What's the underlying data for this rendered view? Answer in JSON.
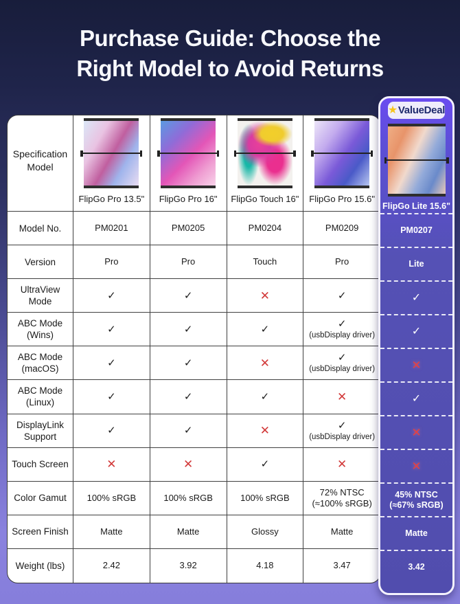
{
  "title": {
    "line1": "Purchase Guide: Choose the",
    "line2": "Right Model to Avoid Returns"
  },
  "spec_header": {
    "line1": "Specification",
    "line2": "Model"
  },
  "badge": {
    "label": "ValueDeal",
    "icon": "star-icon"
  },
  "colors": {
    "background_purple": "#8a82de",
    "header_navy": "#181d3b",
    "card_indigo": "#5451b2",
    "card_top_violet": "#6a4bf0",
    "badge_bg": "#efecfb",
    "badge_text": "#1e2a6d",
    "star_yellow": "#f6c51d",
    "check_dark": "#1d1d1d",
    "cross_red": "#d23939",
    "table_line": "#3f3f3f",
    "white": "#ffffff"
  },
  "chart_data": {
    "type": "table",
    "title": "Purchase Guide: Choose the Right Model to Avoid Returns",
    "row_headers": [
      "Model No.",
      "Version",
      "UltraView Mode",
      "ABC Mode (Wins)",
      "ABC Mode (macOS)",
      "ABC Mode (Linux)",
      "DisplayLink Support",
      "Touch Screen",
      "Color Gamut",
      "Screen Finish",
      "Weight (lbs)"
    ],
    "products": [
      {
        "name": "FlipGo Pro 13.5\"",
        "values": [
          "PM0201",
          "Pro",
          "✓",
          "✓",
          "✓",
          "✓",
          "✓",
          "✕",
          "100% sRGB",
          "Matte",
          "2.42"
        ]
      },
      {
        "name": "FlipGo Pro 16\"",
        "values": [
          "PM0205",
          "Pro",
          "✓",
          "✓",
          "✓",
          "✓",
          "✓",
          "✕",
          "100% sRGB",
          "Matte",
          "3.92"
        ]
      },
      {
        "name": "FlipGo Touch 16\"",
        "values": [
          "PM0204",
          "Touch",
          "✕",
          "✓",
          "✕",
          "✓",
          "✕",
          "✓",
          "100% sRGB",
          "Glossy",
          "4.18"
        ]
      },
      {
        "name": "FlipGo Pro 15.6\"",
        "values": [
          "PM0209",
          "Pro",
          "✓",
          "✓|(usbDisplay driver)",
          "✓|(usbDisplay driver)",
          "✕",
          "✓|(usbDisplay driver)",
          "✕",
          "72% NTSC|(≈100% sRGB)",
          "Matte",
          "3.47"
        ]
      }
    ],
    "highlight_product": {
      "badge": "ValueDeal",
      "name": "FlipGo Lite 15.6\"",
      "values": [
        "PM0207",
        "Lite",
        "✓",
        "✓",
        "✕",
        "✓",
        "✕",
        "✕",
        "45% NTSC|(≈67% sRGB)",
        "Matte",
        "3.42"
      ]
    }
  }
}
